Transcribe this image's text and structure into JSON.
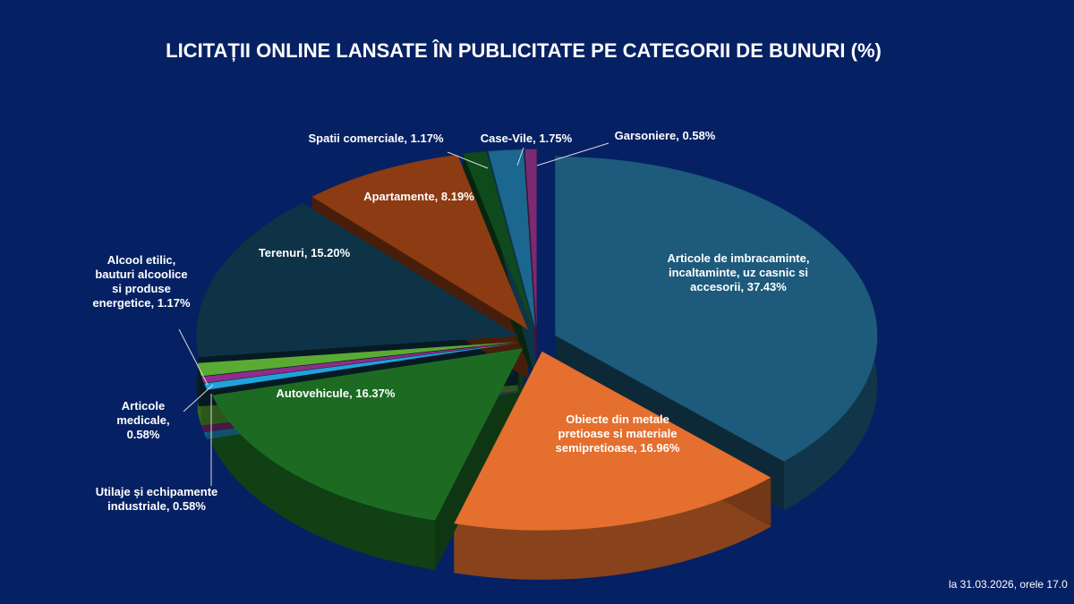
{
  "chart_data": {
    "type": "pie",
    "title": "LICITAȚII ONLINE LANSATE ÎN PUBLICITATE PE CATEGORII DE BUNURI (%)",
    "values": [
      37.43,
      16.96,
      16.37,
      0.58,
      0.58,
      1.17,
      15.2,
      8.19,
      1.17,
      1.75,
      0.58
    ],
    "value_labels": [
      "Articole de imbracaminte, incaltaminte, uz casnic si accesorii, 37.43%",
      "Obiecte din metale pretioase si materiale semipretioase, 16.96%",
      "Autovehicule, 16.37%",
      "Utilaje și echipamente industriale, 0.58%",
      "Articole medicale, 0.58%",
      "Alcool etilic, bauturi alcoolice si produse energetice, 1.17%",
      "Terenuri, 15.20%",
      "Apartamente, 8.19%",
      "Spatii comerciale, 1.17%",
      "Case-Vile, 1.75%",
      "Garsoniere, 0.58%"
    ],
    "colors": [
      "#1d5a7c",
      "#e46f2e",
      "#1d6b23",
      "#1fa3dc",
      "#8e2d8a",
      "#5aab33",
      "#0e3346",
      "#8d3b12",
      "#0e4a1c",
      "#1b678f",
      "#7b2b72"
    ]
  },
  "footer": "la 31.03.2026, orele 17.0"
}
